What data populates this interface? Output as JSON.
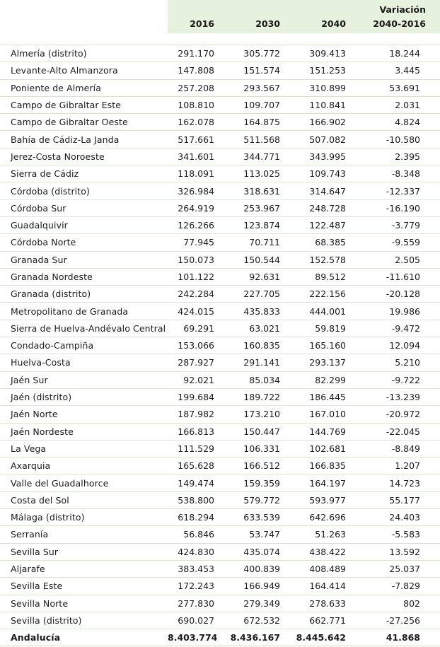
{
  "columns": {
    "name": "",
    "y2016": "2016",
    "y2030": "2030",
    "y2040": "2040",
    "variation_line1": "Variación",
    "variation_line2": "2040-2016"
  },
  "rows": [
    {
      "name": "Almería (distrito)",
      "v2016": "291.170",
      "v2030": "305.772",
      "v2040": "309.413",
      "var": "18.244"
    },
    {
      "name": "Levante-Alto Almanzora",
      "v2016": "147.808",
      "v2030": "151.574",
      "v2040": "151.253",
      "var": "3.445"
    },
    {
      "name": "Poniente de Almería",
      "v2016": "257.208",
      "v2030": "293.567",
      "v2040": "310.899",
      "var": "53.691"
    },
    {
      "name": "Campo de Gibraltar Este",
      "v2016": "108.810",
      "v2030": "109.707",
      "v2040": "110.841",
      "var": "2.031"
    },
    {
      "name": "Campo de Gibraltar Oeste",
      "v2016": "162.078",
      "v2030": "164.875",
      "v2040": "166.902",
      "var": "4.824"
    },
    {
      "name": "Bahía de Cádiz-La Janda",
      "v2016": "517.661",
      "v2030": "511.568",
      "v2040": "507.082",
      "var": "-10.580"
    },
    {
      "name": "Jerez-Costa Noroeste",
      "v2016": "341.601",
      "v2030": "344.771",
      "v2040": "343.995",
      "var": "2.395"
    },
    {
      "name": "Sierra de Cádiz",
      "v2016": "118.091",
      "v2030": "113.025",
      "v2040": "109.743",
      "var": "-8.348"
    },
    {
      "name": "Córdoba (distrito)",
      "v2016": "326.984",
      "v2030": "318.631",
      "v2040": "314.647",
      "var": "-12.337"
    },
    {
      "name": "Córdoba Sur",
      "v2016": "264.919",
      "v2030": "253.967",
      "v2040": "248.728",
      "var": "-16.190"
    },
    {
      "name": "Guadalquivir",
      "v2016": "126.266",
      "v2030": "123.874",
      "v2040": "122.487",
      "var": "-3.779"
    },
    {
      "name": "Córdoba Norte",
      "v2016": "77.945",
      "v2030": "70.711",
      "v2040": "68.385",
      "var": "-9.559"
    },
    {
      "name": "Granada Sur",
      "v2016": "150.073",
      "v2030": "150.544",
      "v2040": "152.578",
      "var": "2.505"
    },
    {
      "name": "Granada Nordeste",
      "v2016": "101.122",
      "v2030": "92.631",
      "v2040": "89.512",
      "var": "-11.610"
    },
    {
      "name": "Granada (distrito)",
      "v2016": "242.284",
      "v2030": "227.705",
      "v2040": "222.156",
      "var": "-20.128"
    },
    {
      "name": "Metropolitano de Granada",
      "v2016": "424.015",
      "v2030": "435.833",
      "v2040": "444.001",
      "var": "19.986"
    },
    {
      "name": "Sierra de Huelva-Andévalo Central",
      "v2016": "69.291",
      "v2030": "63.021",
      "v2040": "59.819",
      "var": "-9.472"
    },
    {
      "name": "Condado-Campiña",
      "v2016": "153.066",
      "v2030": "160.835",
      "v2040": "165.160",
      "var": "12.094"
    },
    {
      "name": "Huelva-Costa",
      "v2016": "287.927",
      "v2030": "291.141",
      "v2040": "293.137",
      "var": "5.210"
    },
    {
      "name": "Jaén Sur",
      "v2016": "92.021",
      "v2030": "85.034",
      "v2040": "82.299",
      "var": "-9.722"
    },
    {
      "name": "Jaén (distrito)",
      "v2016": "199.684",
      "v2030": "189.722",
      "v2040": "186.445",
      "var": "-13.239"
    },
    {
      "name": "Jaén Norte",
      "v2016": "187.982",
      "v2030": "173.210",
      "v2040": "167.010",
      "var": "-20.972"
    },
    {
      "name": "Jaén Nordeste",
      "v2016": "166.813",
      "v2030": "150.447",
      "v2040": "144.769",
      "var": "-22.045"
    },
    {
      "name": "La Vega",
      "v2016": "111.529",
      "v2030": "106.331",
      "v2040": "102.681",
      "var": "-8.849"
    },
    {
      "name": "Axarquia",
      "v2016": "165.628",
      "v2030": "166.512",
      "v2040": "166.835",
      "var": "1.207"
    },
    {
      "name": "Valle del Guadalhorce",
      "v2016": "149.474",
      "v2030": "159.359",
      "v2040": "164.197",
      "var": "14.723"
    },
    {
      "name": "Costa del Sol",
      "v2016": "538.800",
      "v2030": "579.772",
      "v2040": "593.977",
      "var": "55.177"
    },
    {
      "name": "Málaga (distrito)",
      "v2016": "618.294",
      "v2030": "633.539",
      "v2040": "642.696",
      "var": "24.403"
    },
    {
      "name": "Serranía",
      "v2016": "56.846",
      "v2030": "53.747",
      "v2040": "51.263",
      "var": "-5.583"
    },
    {
      "name": "Sevilla Sur",
      "v2016": "424.830",
      "v2030": "435.074",
      "v2040": "438.422",
      "var": "13.592"
    },
    {
      "name": "Aljarafe",
      "v2016": "383.453",
      "v2030": "400.839",
      "v2040": "408.489",
      "var": "25.037"
    },
    {
      "name": "Sevilla Este",
      "v2016": "172.243",
      "v2030": "166.949",
      "v2040": "164.414",
      "var": "-7.829"
    },
    {
      "name": "Sevilla Norte",
      "v2016": "277.830",
      "v2030": "279.349",
      "v2040": "278.633",
      "var": "802"
    },
    {
      "name": "Sevilla (distrito)",
      "v2016": "690.027",
      "v2030": "672.532",
      "v2040": "662.771",
      "var": "-27.256"
    }
  ],
  "total": {
    "name": "Andalucía",
    "v2016": "8.403.774",
    "v2030": "8.436.167",
    "v2040": "8.445.642",
    "var": "41.868"
  },
  "colors": {
    "header_background": "#e6f2dd",
    "row_divider": "#d6e6c8"
  }
}
